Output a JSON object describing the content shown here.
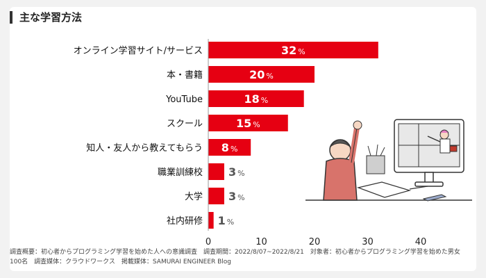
{
  "chart_data": {
    "type": "bar",
    "orientation": "horizontal",
    "title": "主な学習方法",
    "categories": [
      "オンライン学習サイト/サービス",
      "本・書籍",
      "YouTube",
      "スクール",
      "知人・友人から教えてもらう",
      "職業訓練校",
      "大学",
      "社内研修"
    ],
    "values": [
      32,
      20,
      18,
      15,
      8,
      3,
      3,
      1
    ],
    "unit": "%",
    "xlim": [
      0,
      40
    ],
    "xticks": [
      0,
      10,
      20,
      30,
      40
    ],
    "grid": false,
    "bar_color": "#e60012"
  },
  "notes": {
    "line1": "調査概要：初心者からプログラミング学習を始めた人への意識調査　調査期間：2022/8/07~2022/8/21　対象者：初心者からプログラミング学習を始めた男女",
    "line2": "100名　調査媒体：クラウドワークス　掲載媒体：SAMURAI ENGINEER Blog"
  }
}
